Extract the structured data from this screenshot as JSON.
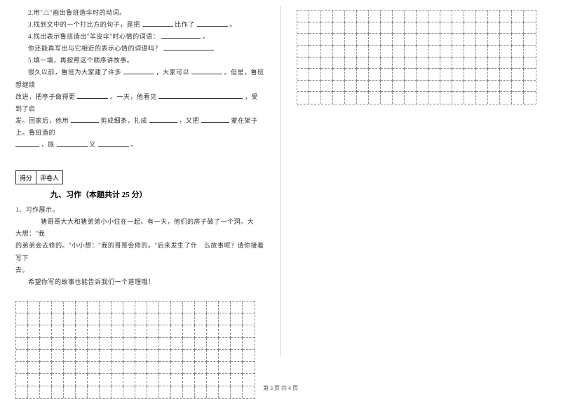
{
  "left": {
    "q2": "2.用\"△\"画出鲁班造伞时的动词。",
    "q3a": "3.找到文中的一个打比方的句子，是把",
    "q3b": "比作了",
    "q3c": "。",
    "q4a": "4.找出表示鲁班造出\"羊皮伞\"时心情的词语：",
    "q4b": "。",
    "q4c": "你还能再写出与它相近的表示心情的词语吗？",
    "q5": "5.填一填，再按照这个顺序讲故事。",
    "p1a": "很久以前，鲁班为大家建了许多",
    "p1b": "，大家可以",
    "p1c": "。但是，鲁班想继续",
    "p2a": "改进，把亭子做得更",
    "p2b": "。一天，他看见",
    "p2c": "，受到了启",
    "p3a": "发。回家后，他用",
    "p3b": "剪成细条，扎成",
    "p3c": "，又把",
    "p3d": "蒙在架子上。鲁班造的",
    "p4a": "，既",
    "p4b": "又",
    "p4c": "。",
    "score1": "得分",
    "score2": "评卷人",
    "section": "九、习作（本题共计 25 分）",
    "ex_label": "1、习作展示。",
    "ex_p1": "猪哥哥大大和猪弟弟小小住在一起。有一天，他们的房子破了一个洞。大　大想：\"我",
    "ex_p2": "的弟弟会去修的。\"小小想：\"我的哥哥会修的。\"后来发生了什　么故事呢？请你接着写下",
    "ex_p3": "去。",
    "ex_p4": "希望你写的故事也能告诉我们一个道理哦！"
  },
  "footer": "第 3 页 共 4 页",
  "grid": {
    "cols": 20,
    "rows": 8
  },
  "style": {
    "blank_short": 44,
    "blank_med": 56,
    "blank_long": 72,
    "blank_xlong": 120
  }
}
